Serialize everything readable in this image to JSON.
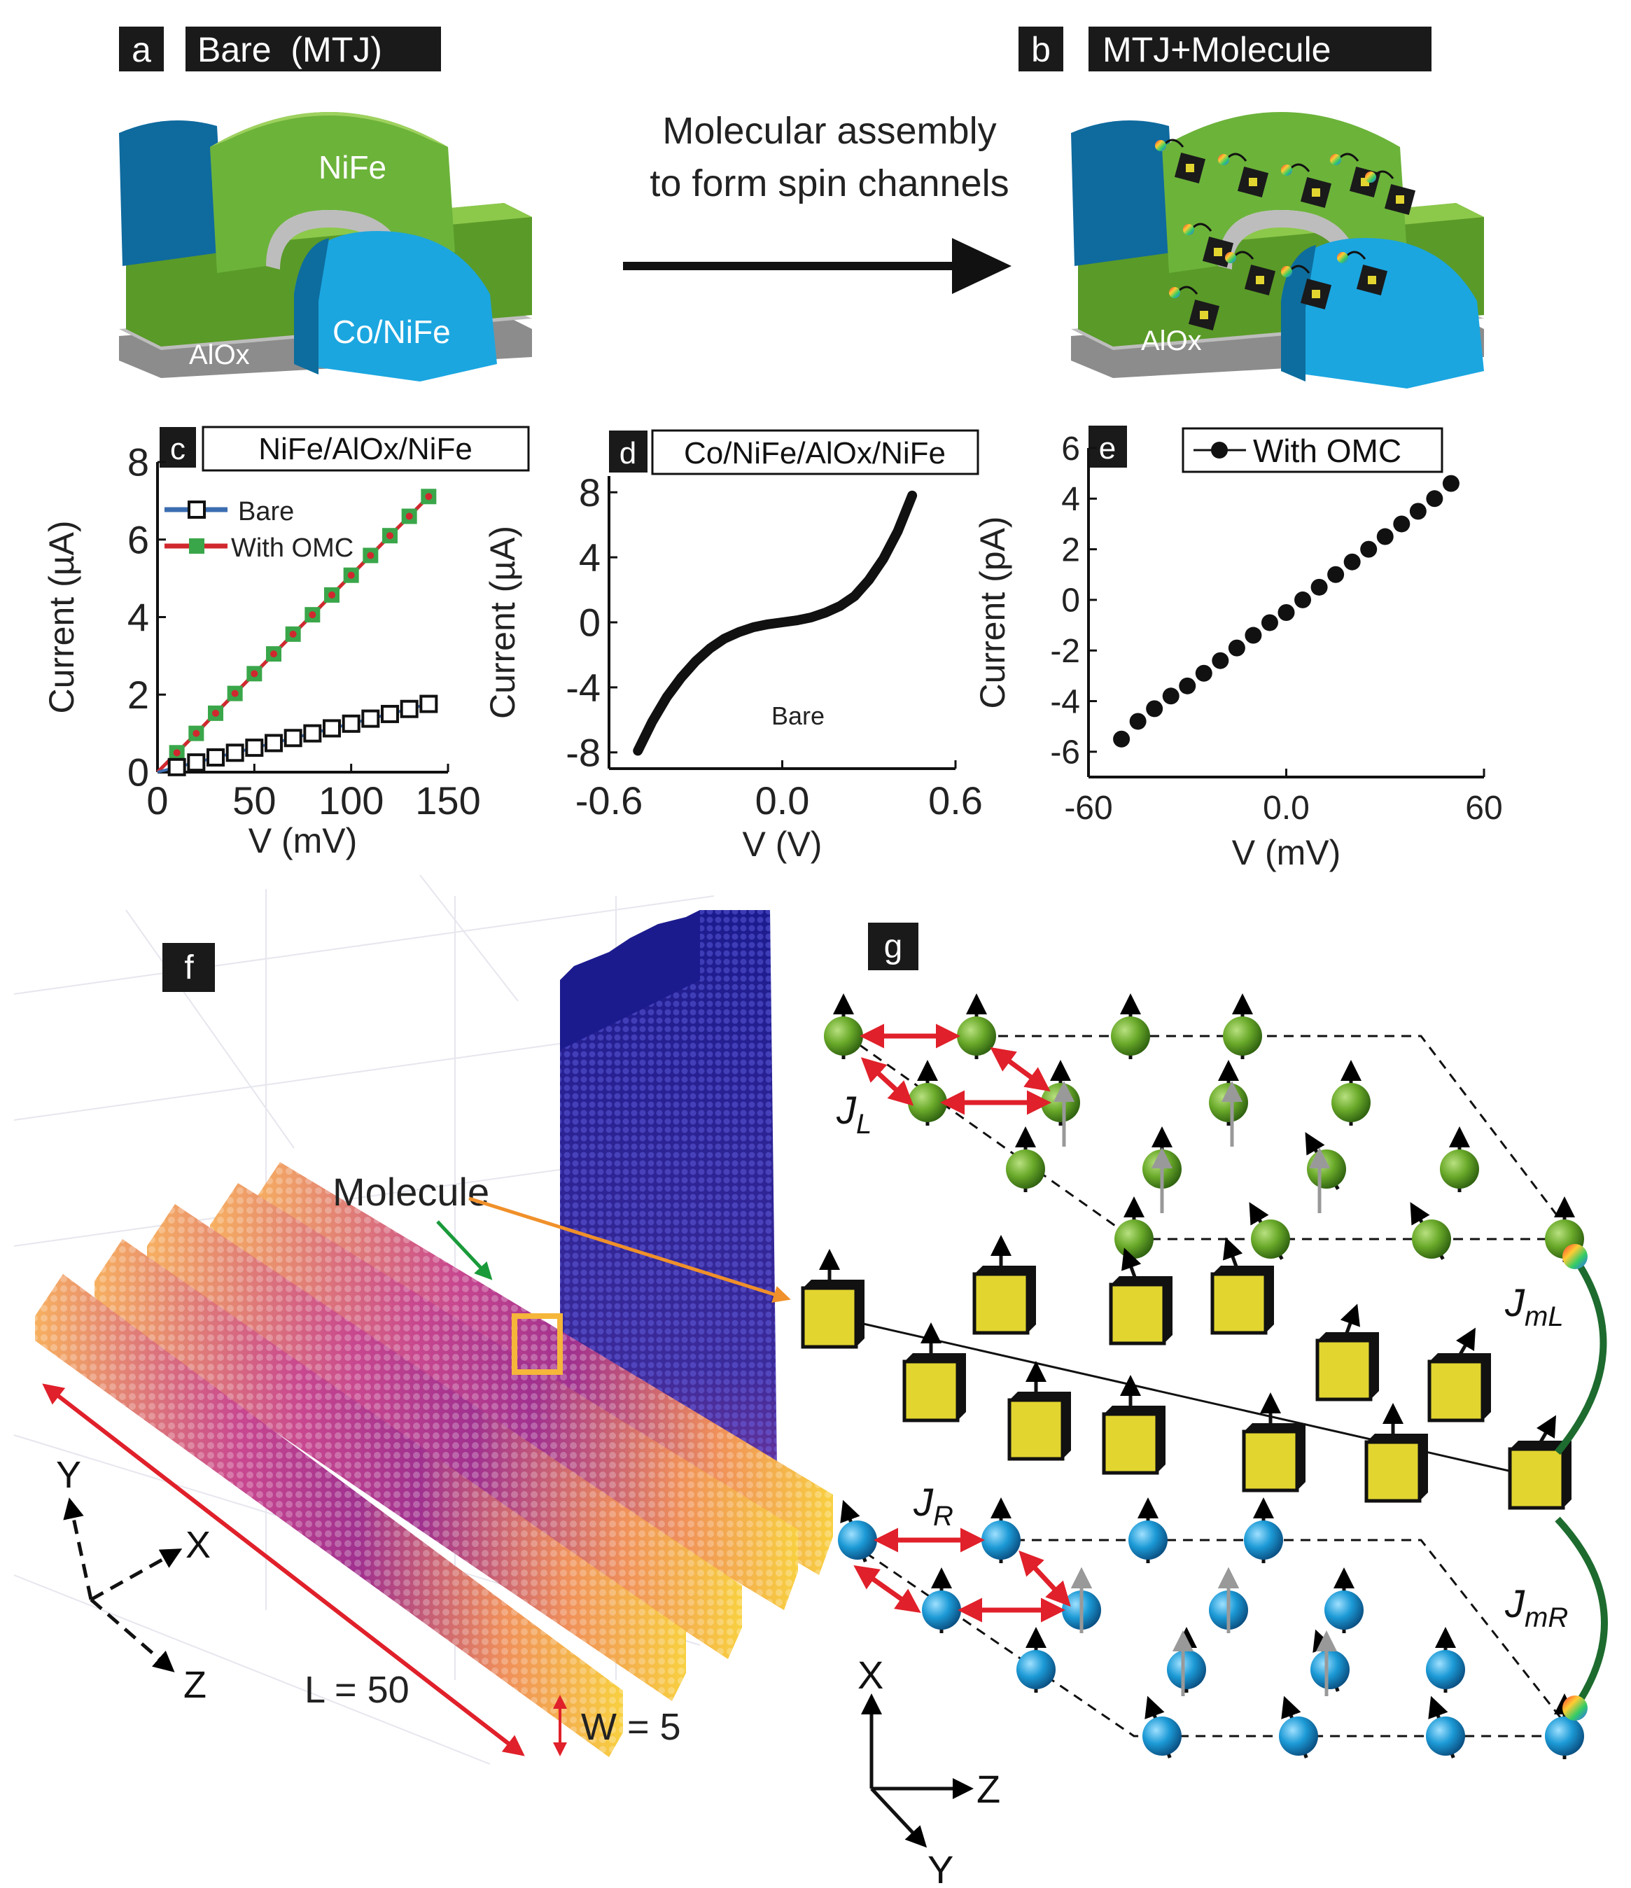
{
  "panels": {
    "a": {
      "letter": "a",
      "title": "Bare  (MTJ)",
      "labels": {
        "top": "NiFe",
        "bottom": "Co/NiFe",
        "insulator": "AlOx"
      }
    },
    "b": {
      "letter": "b",
      "title": "MTJ+Molecule",
      "labels": {
        "insulator": "AlOx"
      }
    },
    "arrow": {
      "line1": "Molecular assembly",
      "line2": "to form spin channels"
    },
    "c": {
      "letter": "c",
      "title": "NiFe/AlOx/NiFe"
    },
    "d": {
      "letter": "d",
      "title": "Co/NiFe/AlOx/NiFe"
    },
    "e": {
      "letter": "e",
      "title": "With OMC"
    },
    "f": {
      "letter": "f",
      "molecule_label": "Molecule",
      "axes": {
        "y": "Y",
        "x": "X",
        "z": "Z"
      },
      "length_label": "L = 50",
      "width_label": "W = 5"
    },
    "g": {
      "letter": "g",
      "JL": "J",
      "JL_sub": "L",
      "JR": "J",
      "JR_sub": "R",
      "JmL": "J",
      "JmL_sub": "mL",
      "JmR": "J",
      "JmR_sub": "mR",
      "axes": {
        "x": "X",
        "z": "Z",
        "y": "Y"
      }
    }
  },
  "chart_data": [
    {
      "id": "c",
      "type": "line",
      "title": "NiFe/AlOx/NiFe",
      "xlabel": "V (mV)",
      "ylabel": "Current (µA)",
      "xlim": [
        0,
        150
      ],
      "ylim": [
        0,
        8
      ],
      "xticks": [
        "0",
        "50",
        "100",
        "150"
      ],
      "yticks": [
        "0",
        "2",
        "4",
        "6",
        "8"
      ],
      "series": [
        {
          "name": "Bare",
          "color": "#3b6db0",
          "marker": "open-square",
          "x": [
            0,
            10,
            20,
            30,
            40,
            50,
            60,
            70,
            80,
            90,
            100,
            110,
            120,
            130,
            140
          ],
          "y": [
            0,
            0.13,
            0.25,
            0.38,
            0.5,
            0.63,
            0.75,
            0.88,
            1.0,
            1.13,
            1.25,
            1.38,
            1.5,
            1.63,
            1.76
          ]
        },
        {
          "name": "With OMC",
          "color": "#d0282e",
          "marker": "green-square",
          "x": [
            0,
            10,
            20,
            30,
            40,
            50,
            60,
            70,
            80,
            90,
            100,
            110,
            120,
            130,
            140
          ],
          "y": [
            0,
            0.5,
            1.0,
            1.52,
            2.03,
            2.54,
            3.05,
            3.56,
            4.06,
            4.57,
            5.08,
            5.59,
            6.1,
            6.6,
            7.11
          ]
        }
      ]
    },
    {
      "id": "d",
      "type": "line",
      "title": "Co/NiFe/AlOx/NiFe",
      "xlabel": "V (V)",
      "ylabel": "Current (µA)",
      "xlim": [
        -0.6,
        0.6
      ],
      "ylim": [
        -9,
        9
      ],
      "xticks": [
        "-0.6",
        "0.0",
        "0.6"
      ],
      "yticks": [
        "-8",
        "-4",
        "0",
        "4",
        "8"
      ],
      "annotation": "Bare",
      "series": [
        {
          "name": "Bare",
          "color": "#000000",
          "x": [
            -0.5,
            -0.45,
            -0.4,
            -0.35,
            -0.3,
            -0.25,
            -0.2,
            -0.15,
            -0.1,
            -0.05,
            0,
            0.05,
            0.1,
            0.15,
            0.2,
            0.25,
            0.3,
            0.35,
            0.4,
            0.45
          ],
          "y": [
            -7.9,
            -6.1,
            -4.6,
            -3.4,
            -2.4,
            -1.6,
            -1.0,
            -0.6,
            -0.3,
            -0.12,
            0,
            0.12,
            0.3,
            0.6,
            1.0,
            1.6,
            2.6,
            3.9,
            5.6,
            7.8
          ]
        }
      ]
    },
    {
      "id": "e",
      "type": "scatter",
      "title": "With OMC",
      "xlabel": "V (mV)",
      "ylabel": "Current (pA)",
      "xlim": [
        -60,
        60
      ],
      "ylim": [
        -7,
        6
      ],
      "xticks": [
        "-60",
        "0.0",
        "60"
      ],
      "yticks": [
        "-6",
        "-4",
        "-2",
        "0",
        "2",
        "4",
        "6"
      ],
      "series": [
        {
          "name": "With OMC",
          "color": "#000000",
          "x": [
            -50,
            -45,
            -40,
            -35,
            -30,
            -25,
            -20,
            -15,
            -10,
            -5,
            0,
            5,
            10,
            15,
            20,
            25,
            30,
            35,
            40,
            45,
            50
          ],
          "y": [
            -5.5,
            -4.8,
            -4.3,
            -3.8,
            -3.4,
            -2.9,
            -2.4,
            -1.9,
            -1.4,
            -0.9,
            -0.5,
            0,
            0.5,
            1.0,
            1.5,
            2.0,
            2.5,
            3.0,
            3.5,
            4.0,
            4.6
          ]
        }
      ]
    }
  ]
}
